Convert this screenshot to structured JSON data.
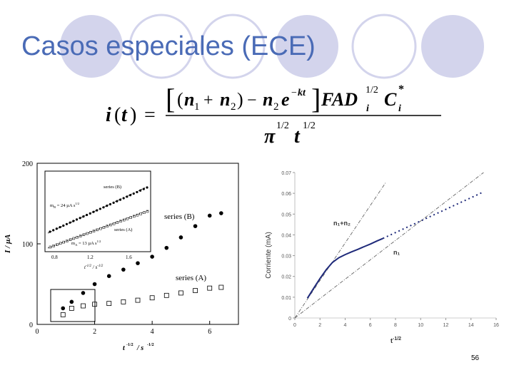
{
  "slide": {
    "title": "Casos especiales (ECE)",
    "page_number": "56"
  },
  "formula": {
    "lhs": "i(t) =",
    "numerator": "[(n₁ + n₂) − n₂e^(−kt)] F A D_i^(1/2) C_i^*",
    "denominator": "π^(1/2) t^(1/2)"
  },
  "chart_data": [
    {
      "type": "scatter",
      "xlabel": "t^-1/2 / s^-1/2",
      "ylabel": "I / µA",
      "xlim": [
        0,
        7
      ],
      "ylim": [
        0,
        200
      ],
      "xticks": [
        "0",
        "2",
        "4",
        "6"
      ],
      "yticks": [
        "0",
        "100",
        "200"
      ],
      "annotations": [
        "series (B)",
        "series (A)"
      ],
      "series": [
        {
          "name": "series (B)",
          "marker": "filled-circle",
          "x": [
            0.9,
            1.2,
            1.6,
            2.0,
            2.5,
            3.0,
            3.5,
            4.0,
            4.5,
            5.0,
            5.5,
            6.0,
            6.4
          ],
          "y": [
            20,
            28,
            39,
            50,
            60,
            68,
            76,
            84,
            95,
            108,
            122,
            135,
            138
          ]
        },
        {
          "name": "series (A)",
          "marker": "open-square",
          "x": [
            0.9,
            1.2,
            1.6,
            2.0,
            2.5,
            3.0,
            3.5,
            4.0,
            4.5,
            5.0,
            5.5,
            6.0,
            6.4
          ],
          "y": [
            12,
            20,
            23,
            25,
            26,
            28,
            30,
            33,
            36,
            39,
            42,
            45,
            46
          ]
        }
      ],
      "inset": {
        "xticks": [
          "0.8",
          "1.2",
          "1.6"
        ],
        "xlabel": "t^-1/2 / s^-1/2",
        "labels": [
          "series (B)",
          "series (A)",
          "m_B = 24 µA s^1/2",
          "m_A = 13 µA s^1/2"
        ]
      }
    },
    {
      "type": "line",
      "xlabel": "t^-1/2",
      "ylabel": "Corriente (mA)",
      "xlim": [
        0,
        16
      ],
      "ylim": [
        0,
        0.07
      ],
      "xticks": [
        "0",
        "2",
        "4",
        "6",
        "8",
        "10",
        "12",
        "14",
        "16"
      ],
      "yticks": [
        "0",
        "0.01",
        "0.02",
        "0.03",
        "0.04",
        "0.05",
        "0.06",
        "0.07"
      ],
      "series": [
        {
          "name": "n1+n2",
          "style": "dash-dot",
          "x": [
            0,
            7.2
          ],
          "y": [
            0,
            0.065
          ]
        },
        {
          "name": "n1",
          "style": "dash-dot",
          "x": [
            0,
            15
          ],
          "y": [
            0,
            0.07
          ]
        },
        {
          "name": "",
          "style": "solid",
          "x": [
            1.0,
            1.5,
            2.0,
            2.5,
            3.0,
            3.5,
            4.0,
            4.5,
            5.0,
            5.5,
            6.0,
            6.5,
            7.0,
            8.0,
            9.0,
            10.0,
            11.0,
            12.0,
            13.0,
            14.0,
            15.0
          ],
          "y": [
            0.0095,
            0.0143,
            0.019,
            0.0233,
            0.0268,
            0.029,
            0.0305,
            0.0318,
            0.033,
            0.0343,
            0.0356,
            0.037,
            0.0383,
            0.0411,
            0.0439,
            0.0467,
            0.0495,
            0.0523,
            0.0551,
            0.0579,
            0.0607
          ]
        }
      ],
      "series_labels": [
        "n₁+n₂",
        "n₁"
      ]
    }
  ]
}
